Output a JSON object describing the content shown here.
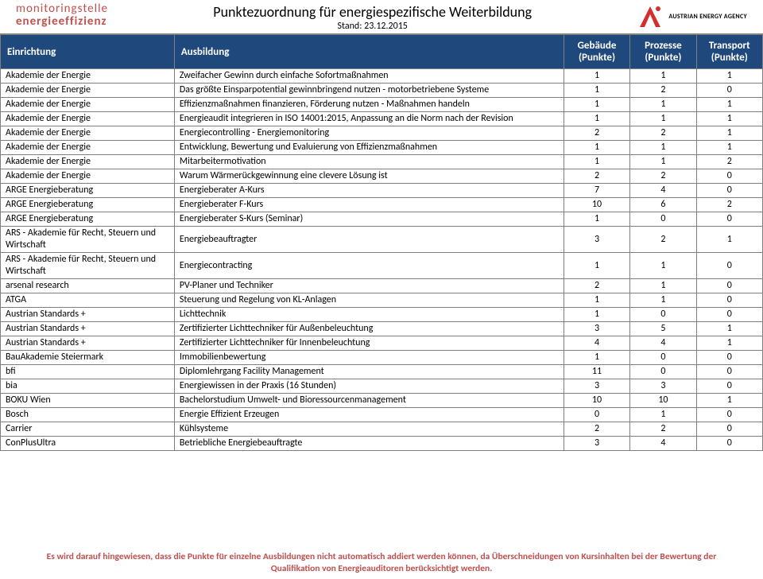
{
  "header": {
    "brand_line1": "monitoringstelle",
    "brand_line2": "energieeffizienz",
    "title": "Punktezuordnung für energiespezifische Weiterbildung",
    "subtitle": "Stand: 23.12.2015",
    "aea_label": "AUSTRIAN ENERGY AGENCY"
  },
  "table": {
    "columns": [
      {
        "label": "Einrichtung",
        "align": "left"
      },
      {
        "label": "Ausbildung",
        "align": "left"
      },
      {
        "label_l1": "Gebäude",
        "label_l2": "(Punkte)",
        "align": "center"
      },
      {
        "label_l1": "Prozesse",
        "label_l2": "(Punkte)",
        "align": "center"
      },
      {
        "label_l1": "Transport",
        "label_l2": "(Punkte)",
        "align": "center"
      }
    ],
    "rows": [
      [
        "Akademie der Energie",
        "Zweifacher Gewinn durch einfache Sofortmaßnahmen",
        "1",
        "1",
        "1"
      ],
      [
        "Akademie der Energie",
        "Das größte Einsparpotential gewinnbringend nutzen - motorbetriebene Systeme",
        "1",
        "2",
        "0"
      ],
      [
        "Akademie der Energie",
        "Effizienzmaßnahmen finanzieren, Förderung nutzen - Maßnahmen handeln",
        "1",
        "1",
        "1"
      ],
      [
        "Akademie der Energie",
        "Energieaudit integrieren in ISO 14001:2015, Anpassung an die Norm nach der Revision",
        "1",
        "1",
        "1"
      ],
      [
        "Akademie der Energie",
        "Energiecontrolling - Energiemonitoring",
        "2",
        "2",
        "1"
      ],
      [
        "Akademie der Energie",
        "Entwicklung, Bewertung und Evaluierung von Effizienzmaßnahmen",
        "1",
        "1",
        "1"
      ],
      [
        "Akademie der Energie",
        "Mitarbeitermotivation",
        "1",
        "1",
        "2"
      ],
      [
        "Akademie der Energie",
        "Warum Wärmerückgewinnung eine clevere Lösung ist",
        "2",
        "2",
        "0"
      ],
      [
        "ARGE Energieberatung",
        "Energieberater A-Kurs",
        "7",
        "4",
        "0"
      ],
      [
        "ARGE Energieberatung",
        "Energieberater F-Kurs",
        "10",
        "6",
        "2"
      ],
      [
        "ARGE Energieberatung",
        "Energieberater S-Kurs (Seminar)",
        "1",
        "0",
        "0"
      ],
      [
        "ARS - Akademie für Recht, Steuern und Wirtschaft",
        "Energiebeauftragter",
        "3",
        "2",
        "1"
      ],
      [
        "ARS - Akademie für Recht, Steuern und Wirtschaft",
        "Energiecontracting",
        "1",
        "1",
        "0"
      ],
      [
        "arsenal research",
        "PV-Planer und Techniker",
        "2",
        "1",
        "0"
      ],
      [
        "ATGA",
        "Steuerung und Regelung von KL-Anlagen",
        "1",
        "1",
        "0"
      ],
      [
        "Austrian Standards +",
        "Lichttechnik",
        "1",
        "0",
        "0"
      ],
      [
        "Austrian Standards +",
        "Zertifizierter Lichttechniker für Außenbeleuchtung",
        "3",
        "5",
        "1"
      ],
      [
        "Austrian Standards +",
        "Zertifizierter Lichttechniker für Innenbeleuchtung",
        "4",
        "4",
        "1"
      ],
      [
        "BauAkademie Steiermark",
        "Immobilienbewertung",
        "1",
        "0",
        "0"
      ],
      [
        "bfi",
        "Diplomlehrgang Facility Management",
        "11",
        "0",
        "0"
      ],
      [
        "bia",
        "Energiewissen in der Praxis (16 Stunden)",
        "3",
        "3",
        "0"
      ],
      [
        "BOKU Wien",
        "Bachelorstudium Umwelt- und Bioressourcenmanagement",
        "10",
        "10",
        "1"
      ],
      [
        "Bosch",
        "Energie Effizient Erzeugen",
        "0",
        "1",
        "0"
      ],
      [
        "Carrier",
        "Kühlsysteme",
        "2",
        "2",
        "0"
      ],
      [
        "ConPlusUltra",
        "Betriebliche Energiebeauftragte",
        "3",
        "4",
        "0"
      ]
    ]
  },
  "footer": {
    "line1": "Es wird darauf hingewiesen, dass die Punkte für einzelne Ausbildungen nicht automatisch addiert werden können, da Überschneidungen von Kursinhalten bei der Bewertung der",
    "line2": "Qualifikation von Energieauditoren berücksichtigt werden."
  },
  "colors": {
    "header_bg": "#1f497d",
    "header_fg": "#ffffff",
    "border": "#7f7f7f",
    "brand": "#c0504d",
    "footer": "#c0504d",
    "logo_red": "#d32f2f"
  }
}
